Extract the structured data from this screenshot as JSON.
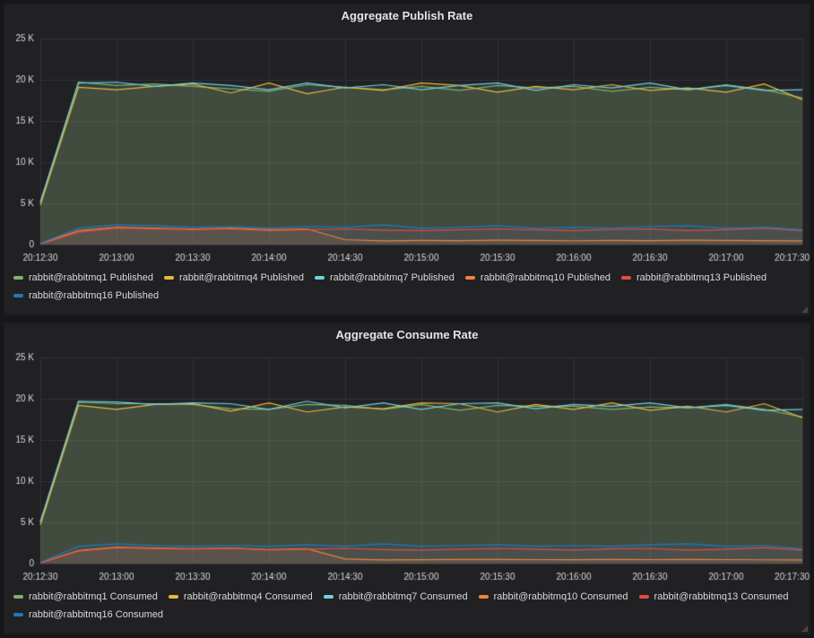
{
  "page": {
    "background": "#161719",
    "panel_background": "#212124",
    "grid_color": "#2f3338",
    "axis_text_color": "#d8d9da"
  },
  "chart_data": [
    {
      "type": "line",
      "title": "Aggregate Publish Rate",
      "ylim": [
        0,
        25000
      ],
      "grid": true,
      "legend_position": "bottom",
      "y_tick_labels": [
        "0",
        "5 K",
        "10 K",
        "15 K",
        "20 K",
        "25 K"
      ],
      "x_tick_labels": [
        "20:12:30",
        "20:13:00",
        "20:13:30",
        "20:14:00",
        "20:14:30",
        "20:15:00",
        "20:15:30",
        "20:16:00",
        "20:16:30",
        "20:17:00",
        "20:17:30"
      ],
      "series": [
        {
          "name": "rabbit@rabbitmq1 Published",
          "color": "#7EB26D",
          "values": [
            5000,
            19700,
            19300,
            19500,
            19200,
            18900,
            18600,
            19400,
            19100,
            18800,
            19200,
            18700,
            19300,
            19000,
            19200,
            18600,
            19100,
            18800,
            19400,
            18800,
            17800
          ]
        },
        {
          "name": "rabbit@rabbitmq4 Published",
          "color": "#EAB839",
          "values": [
            4800,
            19100,
            18800,
            19200,
            19500,
            18400,
            19600,
            18300,
            19100,
            18700,
            19600,
            19300,
            18500,
            19200,
            18800,
            19400,
            18700,
            19000,
            18500,
            19500,
            17600
          ]
        },
        {
          "name": "rabbit@rabbitmq7 Published",
          "color": "#6ED0E0",
          "values": [
            5200,
            19600,
            19700,
            19200,
            19600,
            19300,
            18800,
            19600,
            19000,
            19400,
            18800,
            19300,
            19600,
            18700,
            19400,
            19000,
            19600,
            18800,
            19300,
            18700,
            18800
          ]
        },
        {
          "name": "rabbit@rabbitmq10 Published",
          "color": "#EF843C",
          "values": [
            100,
            1700,
            2100,
            2000,
            1900,
            2000,
            1800,
            1900,
            600,
            450,
            500,
            480,
            520,
            500,
            460,
            500,
            480,
            520,
            500,
            470,
            450
          ]
        },
        {
          "name": "rabbit@rabbitmq13 Published",
          "color": "#E24D42",
          "values": [
            50,
            1500,
            2000,
            1900,
            1800,
            1900,
            1700,
            1800,
            1900,
            1750,
            1700,
            1800,
            1900,
            1800,
            1700,
            1850,
            1900,
            1700,
            1800,
            2000,
            1700
          ]
        },
        {
          "name": "rabbit@rabbitmq16 Published",
          "color": "#1F78C1",
          "values": [
            150,
            2000,
            2400,
            2300,
            2100,
            2200,
            2000,
            2200,
            2100,
            2400,
            2000,
            2100,
            2300,
            2000,
            2100,
            2000,
            2200,
            2300,
            2000,
            2100,
            1800
          ]
        }
      ]
    },
    {
      "type": "line",
      "title": "Aggregate Consume Rate",
      "ylim": [
        0,
        25000
      ],
      "grid": true,
      "legend_position": "bottom",
      "y_tick_labels": [
        "0",
        "5 K",
        "10 K",
        "15 K",
        "20 K",
        "25 K"
      ],
      "x_tick_labels": [
        "20:12:30",
        "20:13:00",
        "20:13:30",
        "20:14:00",
        "20:14:30",
        "20:15:00",
        "20:15:30",
        "20:16:00",
        "20:16:30",
        "20:17:00",
        "20:17:30"
      ],
      "series": [
        {
          "name": "rabbit@rabbitmq1 Consumed",
          "color": "#7EB26D",
          "values": [
            5000,
            19600,
            19400,
            19400,
            19300,
            18800,
            18700,
            19300,
            19200,
            18700,
            19300,
            18600,
            19200,
            19100,
            19100,
            18700,
            19000,
            18900,
            19300,
            18700,
            17800
          ]
        },
        {
          "name": "rabbit@rabbitmq4 Consumed",
          "color": "#EAB839",
          "values": [
            4700,
            19200,
            18700,
            19300,
            19400,
            18500,
            19500,
            18400,
            19000,
            18800,
            19500,
            19400,
            18400,
            19300,
            18700,
            19500,
            18600,
            19100,
            18400,
            19400,
            17700
          ]
        },
        {
          "name": "rabbit@rabbitmq7 Consumed",
          "color": "#6ED0E0",
          "values": [
            5100,
            19700,
            19600,
            19300,
            19500,
            19400,
            18700,
            19700,
            18900,
            19500,
            18700,
            19400,
            19500,
            18800,
            19300,
            19100,
            19500,
            18900,
            19200,
            18600,
            18700
          ]
        },
        {
          "name": "rabbit@rabbitmq10 Consumed",
          "color": "#EF843C",
          "values": [
            100,
            1600,
            2000,
            1900,
            1800,
            1900,
            1700,
            1800,
            550,
            450,
            480,
            500,
            510,
            490,
            470,
            500,
            490,
            510,
            490,
            460,
            440
          ]
        },
        {
          "name": "rabbit@rabbitmq13 Consumed",
          "color": "#E24D42",
          "values": [
            60,
            1500,
            1900,
            1800,
            1750,
            1850,
            1650,
            1750,
            1850,
            1700,
            1650,
            1750,
            1850,
            1750,
            1650,
            1800,
            1850,
            1650,
            1750,
            1950,
            1650
          ]
        },
        {
          "name": "rabbit@rabbitmq16 Consumed",
          "color": "#1F78C1",
          "values": [
            150,
            2100,
            2400,
            2200,
            2100,
            2200,
            2100,
            2300,
            2100,
            2400,
            2100,
            2200,
            2300,
            2100,
            2200,
            2100,
            2300,
            2400,
            2100,
            2200,
            1800
          ]
        }
      ]
    }
  ]
}
